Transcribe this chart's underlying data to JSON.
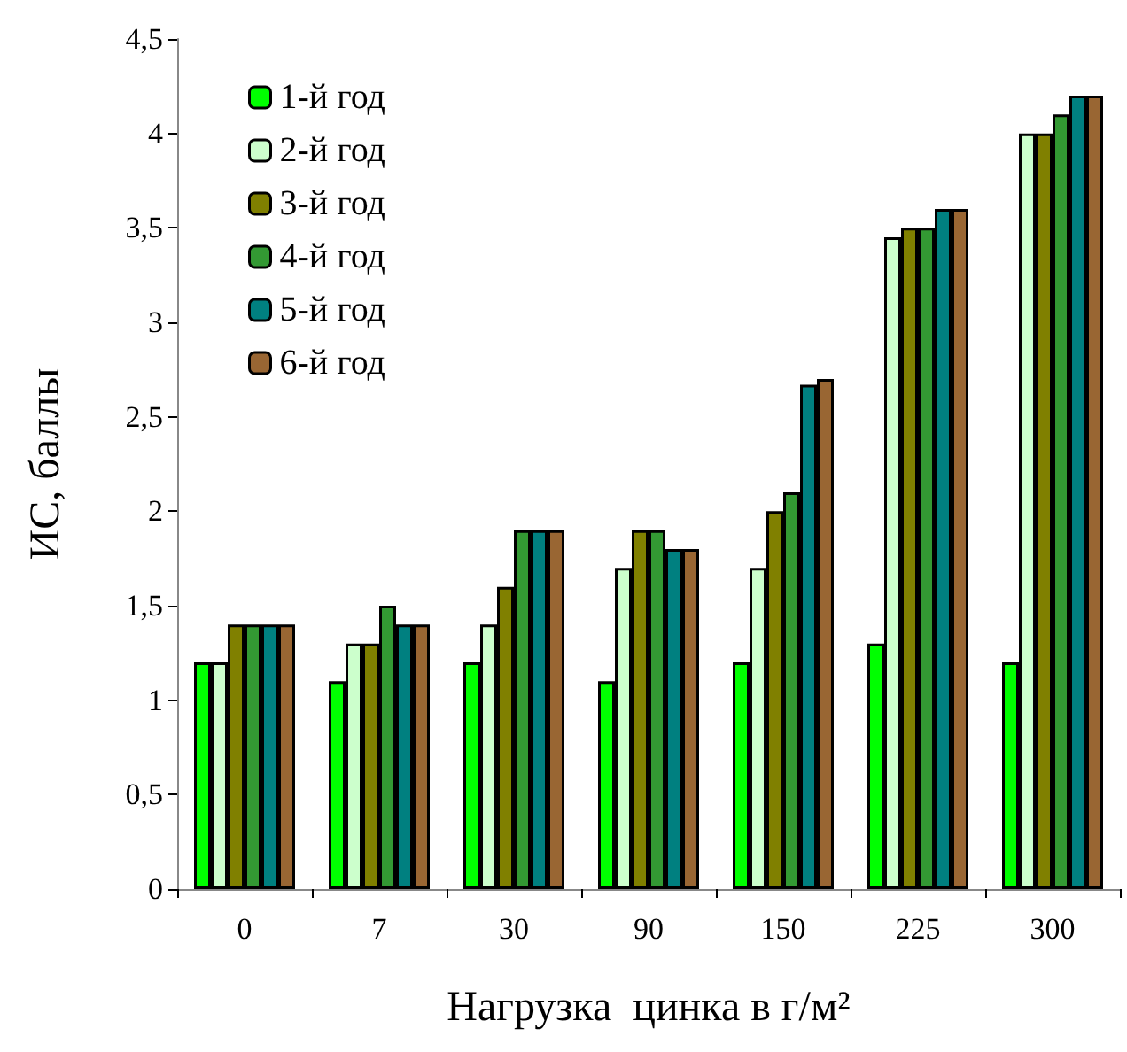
{
  "chart_data": {
    "type": "bar",
    "xlabel": "Нагрузка  цинка в г/м²",
    "ylabel": "ИС, баллы",
    "categories": [
      "0",
      "7",
      "30",
      "90",
      "150",
      "225",
      "300"
    ],
    "series": [
      {
        "name": "1-й год",
        "color": "#00ff00",
        "values": [
          1.2,
          1.1,
          1.2,
          1.1,
          1.2,
          1.3,
          1.2
        ]
      },
      {
        "name": "2-й год",
        "color": "#ccffcc",
        "values": [
          1.2,
          1.3,
          1.4,
          1.7,
          1.7,
          3.45,
          4.0
        ]
      },
      {
        "name": "3-й год",
        "color": "#808000",
        "values": [
          1.4,
          1.3,
          1.6,
          1.9,
          2.0,
          3.5,
          4.0
        ]
      },
      {
        "name": "4-й год",
        "color": "#339933",
        "values": [
          1.4,
          1.5,
          1.9,
          1.9,
          2.1,
          3.5,
          4.1
        ]
      },
      {
        "name": "5-й год",
        "color": "#008080",
        "values": [
          1.4,
          1.4,
          1.9,
          1.8,
          2.67,
          3.6,
          4.2
        ]
      },
      {
        "name": "6-й год",
        "color": "#996633",
        "values": [
          1.4,
          1.4,
          1.9,
          1.8,
          2.7,
          3.6,
          4.2
        ]
      }
    ],
    "ylim": [
      0,
      4.5
    ],
    "yticks": [
      0,
      {
        "value": 0.5,
        "label": "0,5"
      },
      1,
      {
        "value": 1.5,
        "label": "1,5"
      },
      2,
      {
        "value": 2.5,
        "label": "2,5"
      },
      3,
      {
        "value": 3.5,
        "label": "3,5"
      },
      4,
      {
        "value": 4.5,
        "label": "4,5"
      }
    ],
    "grid": false,
    "legend": "top left"
  }
}
